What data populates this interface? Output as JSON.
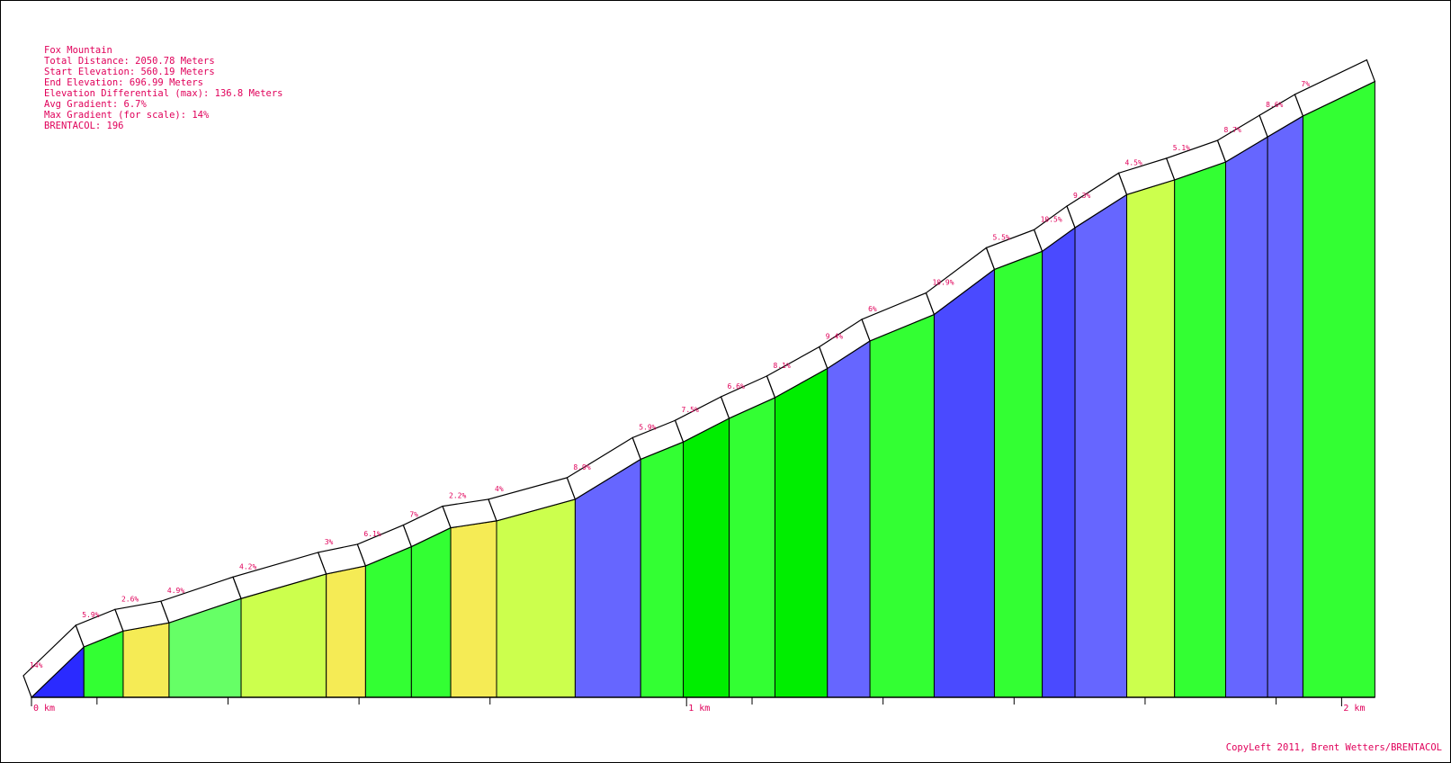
{
  "info": {
    "title": "Fox Mountain",
    "total_distance": "Total Distance: 2050.78 Meters",
    "start_elevation": "Start Elevation: 560.19 Meters",
    "end_elevation": "End Elevation: 696.99 Meters",
    "elevation_differential": "Elevation Differential (max): 136.8 Meters",
    "avg_gradient": "Avg Gradient: 6.7%",
    "max_gradient": "Max Gradient (for scale): 14%",
    "brentacol": "BRENTACOL: 196"
  },
  "footer": {
    "copyleft": "CopyLeft 2011, Brent Wetters/BRENTACOL"
  },
  "colors": {
    "text": "#e0005a",
    "outline": "#000000",
    "road": "#ffffff"
  },
  "chart_data": {
    "type": "area",
    "title": "Fox Mountain",
    "x_unit": "m",
    "y_unit": "m",
    "xlim": [
      0,
      2050.78
    ],
    "ylim": [
      560.19,
      696.99
    ],
    "x_tick_labels": [
      {
        "label": "0 km",
        "value": 0
      },
      {
        "label": "1 km",
        "value": 1000
      },
      {
        "label": "2 km",
        "value": 2000
      }
    ],
    "minor_tick_values": [
      100,
      300,
      500,
      700,
      1100,
      1300,
      1500,
      1700,
      1900
    ],
    "color_scale": [
      {
        "max_gradient": 3,
        "color": "#f5eb55"
      },
      {
        "max_gradient": 4.5,
        "color": "#ccff4d"
      },
      {
        "max_gradient": 5,
        "color": "#66ff66"
      },
      {
        "max_gradient": 7,
        "color": "#33ff33"
      },
      {
        "max_gradient": 8.5,
        "color": "#00ee00"
      },
      {
        "max_gradient": 10,
        "color": "#6666ff"
      },
      {
        "max_gradient": 12,
        "color": "#4a4aff"
      },
      {
        "max_gradient": 100,
        "color": "#2a2aff"
      }
    ],
    "segments": [
      {
        "x0": 0,
        "x1": 80,
        "gradient": 14,
        "label": "14%",
        "show_label": true
      },
      {
        "x0": 80,
        "x1": 140,
        "gradient": 5.9,
        "label": "5.9%",
        "show_label": true
      },
      {
        "x0": 140,
        "x1": 210,
        "gradient": 2.6,
        "label": "2.6%",
        "show_label": true
      },
      {
        "x0": 210,
        "x1": 320,
        "gradient": 4.9,
        "label": "4.9%",
        "show_label": true
      },
      {
        "x0": 320,
        "x1": 450,
        "gradient": 4.2,
        "label": "4.2%",
        "show_label": true
      },
      {
        "x0": 450,
        "x1": 510,
        "gradient": 3,
        "label": "3%",
        "show_label": true
      },
      {
        "x0": 510,
        "x1": 580,
        "gradient": 6.1,
        "label": "6.1%",
        "show_label": true
      },
      {
        "x0": 580,
        "x1": 640,
        "gradient": 7,
        "label": "7%",
        "show_label": true
      },
      {
        "x0": 640,
        "x1": 710,
        "gradient": 2.2,
        "label": "2.2%",
        "show_label": true
      },
      {
        "x0": 710,
        "x1": 830,
        "gradient": 4,
        "label": "4%",
        "show_label": true
      },
      {
        "x0": 830,
        "x1": 930,
        "gradient": 8.9,
        "label": "8.9%",
        "show_label": true
      },
      {
        "x0": 930,
        "x1": 995,
        "gradient": 5.9,
        "label": "5.9%",
        "show_label": true
      },
      {
        "x0": 995,
        "x1": 1065,
        "gradient": 7.5,
        "label": "7.5%",
        "show_label": true
      },
      {
        "x0": 1065,
        "x1": 1135,
        "gradient": 6.6,
        "label": "6.6%",
        "show_label": true
      },
      {
        "x0": 1135,
        "x1": 1215,
        "gradient": 8.1,
        "label": "8.1%",
        "show_label": true
      },
      {
        "x0": 1215,
        "x1": 1280,
        "gradient": 9.4,
        "label": "9.4%",
        "show_label": true
      },
      {
        "x0": 1280,
        "x1": 1378,
        "gradient": 6,
        "label": "6%",
        "show_label": true
      },
      {
        "x0": 1378,
        "x1": 1470,
        "gradient": 10.9,
        "label": "10.9%",
        "show_label": true
      },
      {
        "x0": 1470,
        "x1": 1543,
        "gradient": 5.5,
        "label": "5.5%",
        "show_label": true
      },
      {
        "x0": 1543,
        "x1": 1593,
        "gradient": 10.5,
        "label": "10.5%",
        "show_label": true
      },
      {
        "x0": 1593,
        "x1": 1672,
        "gradient": 9.3,
        "label": "9.3%",
        "show_label": true
      },
      {
        "x0": 1672,
        "x1": 1745,
        "gradient": 4.5,
        "label": "4.5%",
        "show_label": true
      },
      {
        "x0": 1745,
        "x1": 1823,
        "gradient": 5.1,
        "label": "5.1%",
        "show_label": true
      },
      {
        "x0": 1823,
        "x1": 1887,
        "gradient": 8.7,
        "label": "8.7%",
        "show_label": true
      },
      {
        "x0": 1887,
        "x1": 1941,
        "gradient": 8.6,
        "label": "8.6%",
        "show_label": true
      },
      {
        "x0": 1941,
        "x1": 2050.78,
        "gradient": 7,
        "label": "7%",
        "show_label": true
      }
    ]
  }
}
